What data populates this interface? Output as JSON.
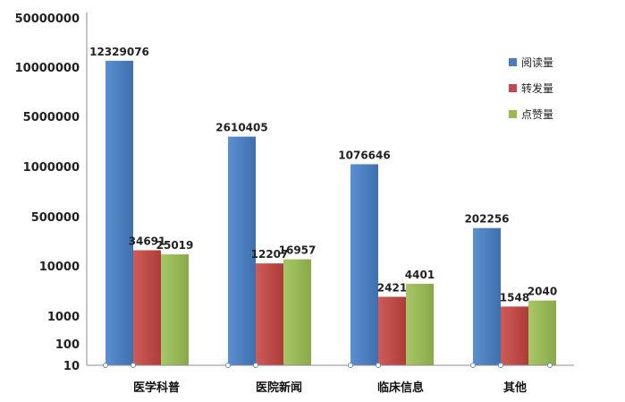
{
  "chart_data": {
    "type": "bar",
    "title": "",
    "xlabel": "",
    "ylabel": "",
    "categories": [
      "医学科普",
      "医院新闻",
      "临床信息",
      "其他"
    ],
    "series": [
      {
        "name": "阅读量",
        "color": "#4a7ebb",
        "values": [
          12329076,
          2610405,
          1076646,
          202256
        ]
      },
      {
        "name": "转发量",
        "color": "#be4b48",
        "values": [
          34691,
          12207,
          2421,
          1548
        ]
      },
      {
        "name": "点赞量",
        "color": "#98b954",
        "values": [
          25019,
          16957,
          4401,
          2040
        ]
      }
    ],
    "y_ticks": [
      "10",
      "100",
      "1000",
      "10000",
      "500000",
      "1000000",
      "5000000",
      "10000000",
      "50000000"
    ],
    "y_tick_values": [
      10,
      100,
      1000,
      10000,
      500000,
      1000000,
      5000000,
      10000000,
      50000000
    ],
    "value_labels": [
      [
        "12329076",
        "2610405",
        "1076646",
        "202256"
      ],
      [
        "34691",
        "12207",
        "2421",
        "1548"
      ],
      [
        "25019",
        "16957",
        "4401",
        "2040"
      ]
    ],
    "legend_position": "top-right",
    "grid": false
  }
}
